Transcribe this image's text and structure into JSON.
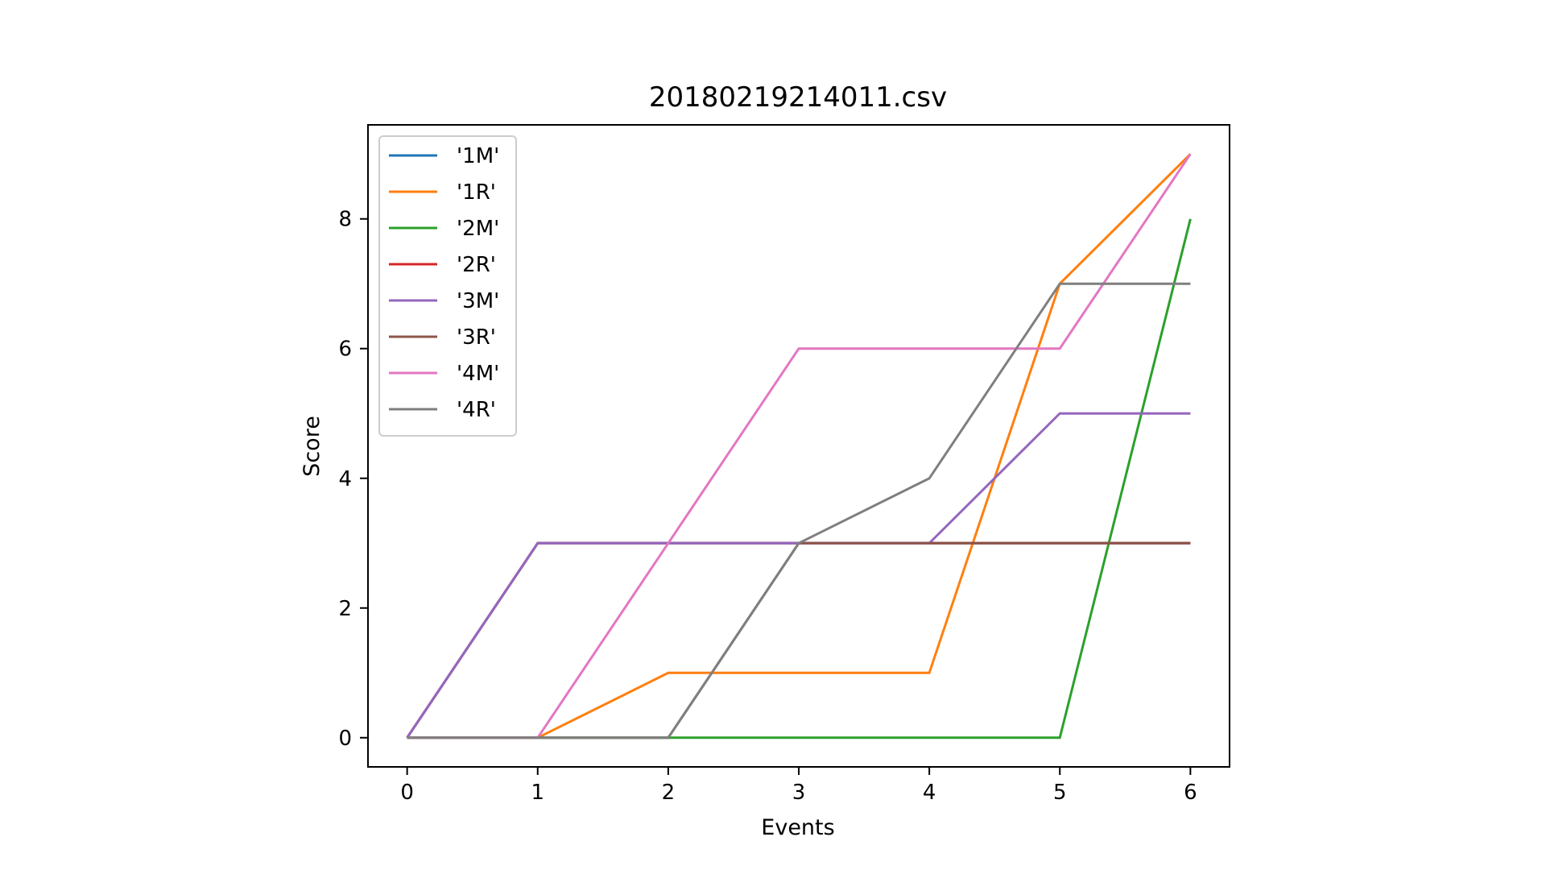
{
  "chart_data": {
    "type": "line",
    "title": "20180219214011.csv",
    "xlabel": "Events",
    "ylabel": "Score",
    "x": [
      0,
      1,
      2,
      3,
      4,
      5,
      6
    ],
    "xticks": [
      "0",
      "1",
      "2",
      "3",
      "4",
      "5",
      "6"
    ],
    "yticks": [
      "0",
      "2",
      "4",
      "6",
      "8"
    ],
    "xlim": [
      -0.3,
      6.3
    ],
    "ylim": [
      -0.45,
      9.45
    ],
    "grid": false,
    "legend_position": "top-left",
    "series": [
      {
        "name": "'1M'",
        "color": "#1f77b4",
        "values": [
          0,
          3,
          3,
          3,
          3,
          3,
          3
        ]
      },
      {
        "name": "'1R'",
        "color": "#ff7f0e",
        "values": [
          0,
          0,
          1,
          1,
          1,
          7,
          9
        ]
      },
      {
        "name": "'2M'",
        "color": "#2ca02c",
        "values": [
          0,
          0,
          0,
          0,
          0,
          0,
          8
        ]
      },
      {
        "name": "'2R'",
        "color": "#d62728",
        "values": [
          0,
          3,
          3,
          3,
          3,
          3,
          3
        ]
      },
      {
        "name": "'3M'",
        "color": "#9467bd",
        "values": [
          0,
          3,
          3,
          3,
          3,
          5,
          5
        ]
      },
      {
        "name": "'3R'",
        "color": "#8c564b",
        "values": [
          0,
          0,
          0,
          3,
          3,
          3,
          3
        ]
      },
      {
        "name": "'4M'",
        "color": "#e377c2",
        "values": [
          0,
          0,
          3,
          6,
          6,
          6,
          9
        ]
      },
      {
        "name": "'4R'",
        "color": "#7f7f7f",
        "values": [
          0,
          0,
          0,
          3,
          4,
          7,
          7
        ]
      }
    ]
  }
}
